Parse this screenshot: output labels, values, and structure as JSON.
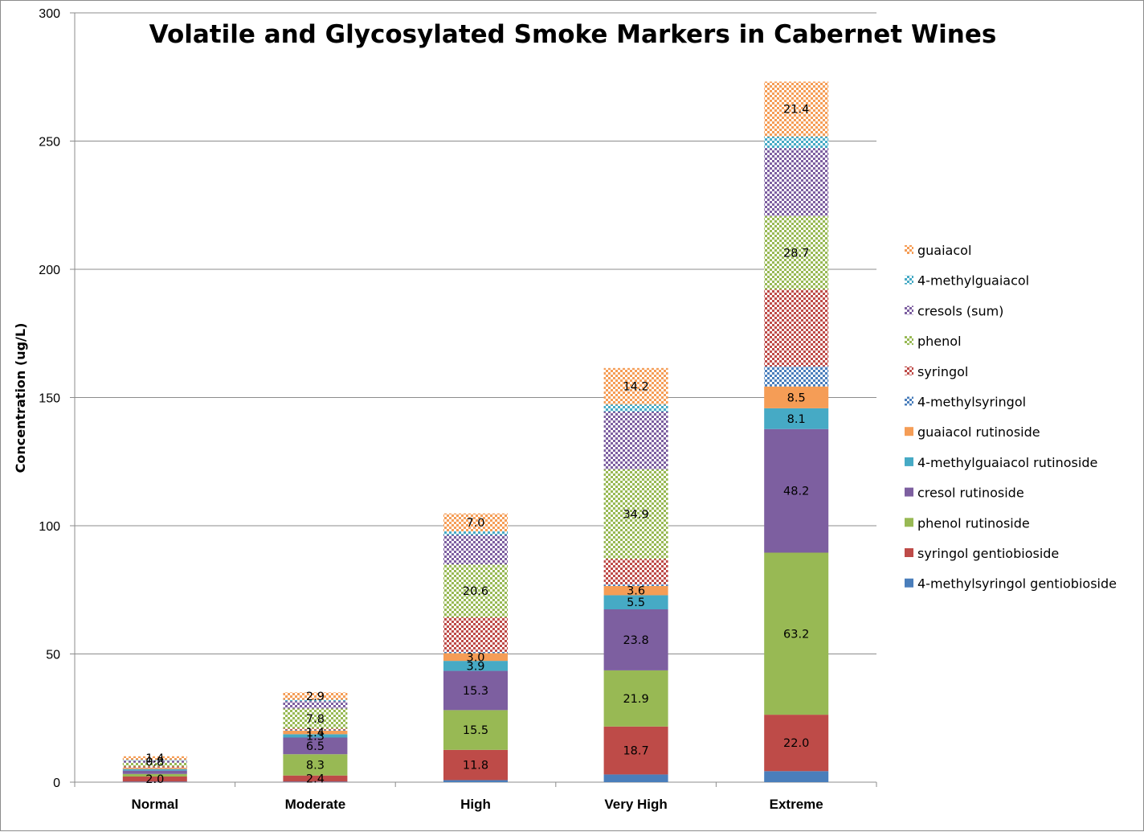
{
  "chart_data": {
    "type": "bar",
    "stacked": true,
    "title": "Volatile and Glycosylated Smoke Markers in Cabernet Wines",
    "ylabel": "Concentration (ug/L)",
    "xlabel": "",
    "ylim": [
      0,
      300
    ],
    "yticks": [
      "0",
      "50",
      "100",
      "150",
      "200",
      "250",
      "300"
    ],
    "grid": true,
    "legend_position": "right",
    "categories": [
      "Normal",
      "Moderate",
      "High",
      "Very High",
      "Extreme"
    ],
    "series": [
      {
        "name": "4-methylsyringol gentiobioside",
        "color": "#4A7EBB",
        "pattern": "solid",
        "values": [
          0.2,
          0.2,
          0.8,
          3.0,
          4.3
        ],
        "labels": [
          "",
          "",
          "",
          "",
          ""
        ]
      },
      {
        "name": "syringol gentiobioside",
        "color": "#BE4B48",
        "pattern": "solid",
        "values": [
          2.0,
          2.4,
          11.8,
          18.7,
          22.0
        ],
        "labels": [
          "2.0",
          "2.4",
          "11.8",
          "18.7",
          "22.0"
        ]
      },
      {
        "name": "phenol rutinoside",
        "color": "#98B954",
        "pattern": "solid",
        "values": [
          1.0,
          8.3,
          15.5,
          21.9,
          63.2
        ],
        "labels": [
          "",
          "8.3",
          "15.5",
          "21.9",
          "63.2"
        ]
      },
      {
        "name": "cresol rutinoside",
        "color": "#7D5FA0",
        "pattern": "solid",
        "values": [
          1.3,
          6.5,
          15.3,
          23.8,
          48.2
        ],
        "labels": [
          "",
          "6.5",
          "15.3",
          "23.8",
          "48.2"
        ]
      },
      {
        "name": "4-methylguaiacol rutinoside",
        "color": "#46AAC5",
        "pattern": "solid",
        "values": [
          0.6,
          1.3,
          3.9,
          5.5,
          8.1
        ],
        "labels": [
          "",
          "1.3",
          "3.9",
          "5.5",
          "8.1"
        ]
      },
      {
        "name": "guaiacol rutinoside",
        "color": "#F59D56",
        "pattern": "solid",
        "values": [
          0.5,
          1.4,
          3.0,
          3.6,
          8.5
        ],
        "labels": [
          "",
          "1.4",
          "3.0",
          "3.6",
          "8.5"
        ]
      },
      {
        "name": "4-methylsyringol",
        "color": "#4A7EBB",
        "pattern": "dots",
        "values": [
          0.1,
          0.3,
          0.5,
          0.6,
          7.8
        ],
        "labels": [
          "",
          "",
          "",
          "",
          ""
        ]
      },
      {
        "name": "syringol",
        "color": "#BE4B48",
        "pattern": "dots",
        "values": [
          0.5,
          0.5,
          13.5,
          10.0,
          30.0
        ],
        "labels": [
          "",
          "",
          "",
          "",
          ""
        ]
      },
      {
        "name": "phenol",
        "color": "#98B954",
        "pattern": "dots",
        "values": [
          1.4,
          7.8,
          20.6,
          34.9,
          28.7
        ],
        "labels": [
          "",
          "7.8",
          "20.6",
          "34.9",
          "28.7"
        ]
      },
      {
        "name": "cresols (sum)",
        "color": "#7D5FA0",
        "pattern": "dots",
        "values": [
          0.8,
          2.9,
          11.5,
          22.5,
          26.5
        ],
        "labels": [
          "0.8",
          "",
          "",
          "",
          ""
        ]
      },
      {
        "name": "4-methylguaiacol",
        "color": "#46AAC5",
        "pattern": "dots",
        "values": [
          0.3,
          0.5,
          1.4,
          2.8,
          4.5
        ],
        "labels": [
          "",
          "",
          "",
          "",
          ""
        ]
      },
      {
        "name": "guaiacol",
        "color": "#F59D56",
        "pattern": "dots",
        "values": [
          1.4,
          2.9,
          7.0,
          14.2,
          21.4
        ],
        "labels": [
          "1.4",
          "2.9",
          "7.0",
          "14.2",
          "21.4"
        ]
      }
    ]
  }
}
